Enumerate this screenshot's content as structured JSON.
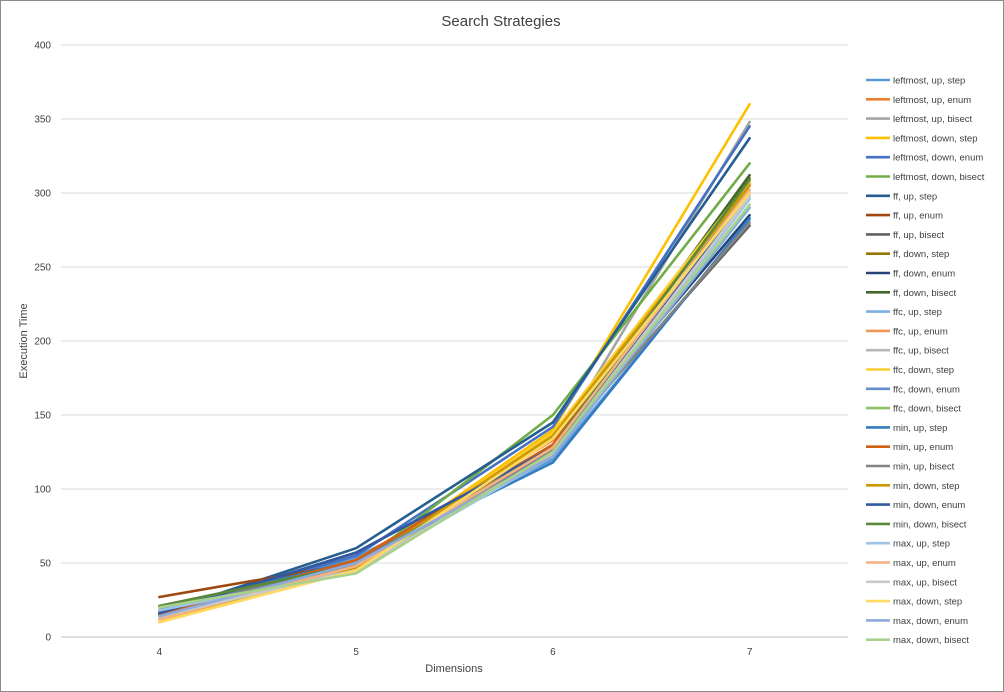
{
  "chart_data": {
    "type": "line",
    "title": "Search Strategies",
    "xlabel": "Dimensions",
    "ylabel": "Execution Time",
    "x": [
      4,
      5,
      6,
      7
    ],
    "ylim": [
      0,
      400
    ],
    "yticks": [
      0,
      50,
      100,
      150,
      200,
      250,
      300,
      350,
      400
    ],
    "grid": "horizontal",
    "legend": "right",
    "series": [
      {
        "name": "leftmost, up, step",
        "color": "#5B9BD5",
        "values": [
          18,
          54,
          120,
          282
        ]
      },
      {
        "name": "leftmost, up, enum",
        "color": "#ED7D31",
        "values": [
          15,
          52,
          133,
          306
        ]
      },
      {
        "name": "leftmost, up, bisect",
        "color": "#A5A5A5",
        "values": [
          14,
          50,
          128,
          348
        ]
      },
      {
        "name": "leftmost, down, step",
        "color": "#FFC000",
        "values": [
          10,
          47,
          140,
          360
        ]
      },
      {
        "name": "leftmost, down, enum",
        "color": "#4472C4",
        "values": [
          16,
          55,
          142,
          345
        ]
      },
      {
        "name": "leftmost, down, bisect",
        "color": "#70AD47",
        "values": [
          20,
          48,
          150,
          320
        ]
      },
      {
        "name": "ff, up, step",
        "color": "#255E91",
        "values": [
          16,
          60,
          145,
          337
        ]
      },
      {
        "name": "ff, up, enum",
        "color": "#9E480E",
        "values": [
          27,
          50,
          135,
          308
        ]
      },
      {
        "name": "ff, up, bisect",
        "color": "#636363",
        "values": [
          20,
          50,
          128,
          278
        ]
      },
      {
        "name": "ff, down, step",
        "color": "#997300",
        "values": [
          15,
          48,
          130,
          310
        ]
      },
      {
        "name": "ff, down, enum",
        "color": "#264478",
        "values": [
          16,
          57,
          128,
          285
        ]
      },
      {
        "name": "ff, down, bisect",
        "color": "#43682B",
        "values": [
          20,
          50,
          130,
          312
        ]
      },
      {
        "name": "ffc, up, step",
        "color": "#7CAFDD",
        "values": [
          18,
          46,
          122,
          290
        ]
      },
      {
        "name": "ffc, up, enum",
        "color": "#F1975A",
        "values": [
          12,
          48,
          130,
          300
        ]
      },
      {
        "name": "ffc, up, bisect",
        "color": "#B7B7B7",
        "values": [
          14,
          46,
          125,
          305
        ]
      },
      {
        "name": "ffc, down, step",
        "color": "#FFCD33",
        "values": [
          10,
          46,
          138,
          308
        ]
      },
      {
        "name": "ffc, down, enum",
        "color": "#698ED0",
        "values": [
          14,
          52,
          125,
          298
        ]
      },
      {
        "name": "ffc, down, bisect",
        "color": "#8CC168",
        "values": [
          20,
          46,
          128,
          296
        ]
      },
      {
        "name": "min, up, step",
        "color": "#327DC2",
        "values": [
          18,
          52,
          118,
          283
        ]
      },
      {
        "name": "min, up, enum",
        "color": "#D26012",
        "values": [
          15,
          52,
          130,
          302
        ]
      },
      {
        "name": "min, up, bisect",
        "color": "#848484",
        "values": [
          17,
          50,
          126,
          280
        ]
      },
      {
        "name": "min, down, step",
        "color": "#CC9A00",
        "values": [
          12,
          47,
          136,
          305
        ]
      },
      {
        "name": "min, down, enum",
        "color": "#335AA1",
        "values": [
          16,
          57,
          128,
          300
        ]
      },
      {
        "name": "min, down, bisect",
        "color": "#5A8A39",
        "values": [
          21,
          49,
          128,
          309
        ]
      },
      {
        "name": "max, up, step",
        "color": "#9DC3E6",
        "values": [
          18,
          45,
          122,
          296
        ]
      },
      {
        "name": "max, up, enum",
        "color": "#F4B183",
        "values": [
          12,
          48,
          128,
          302
        ]
      },
      {
        "name": "max, up, bisect",
        "color": "#C9C9C9",
        "values": [
          14,
          45,
          124,
          298
        ]
      },
      {
        "name": "max, down, step",
        "color": "#FFD966",
        "values": [
          10,
          45,
          134,
          300
        ]
      },
      {
        "name": "max, down, enum",
        "color": "#8FAADC",
        "values": [
          14,
          50,
          122,
          292
        ]
      },
      {
        "name": "max, down, bisect",
        "color": "#A9D18E",
        "values": [
          20,
          43,
          125,
          292
        ]
      }
    ]
  }
}
